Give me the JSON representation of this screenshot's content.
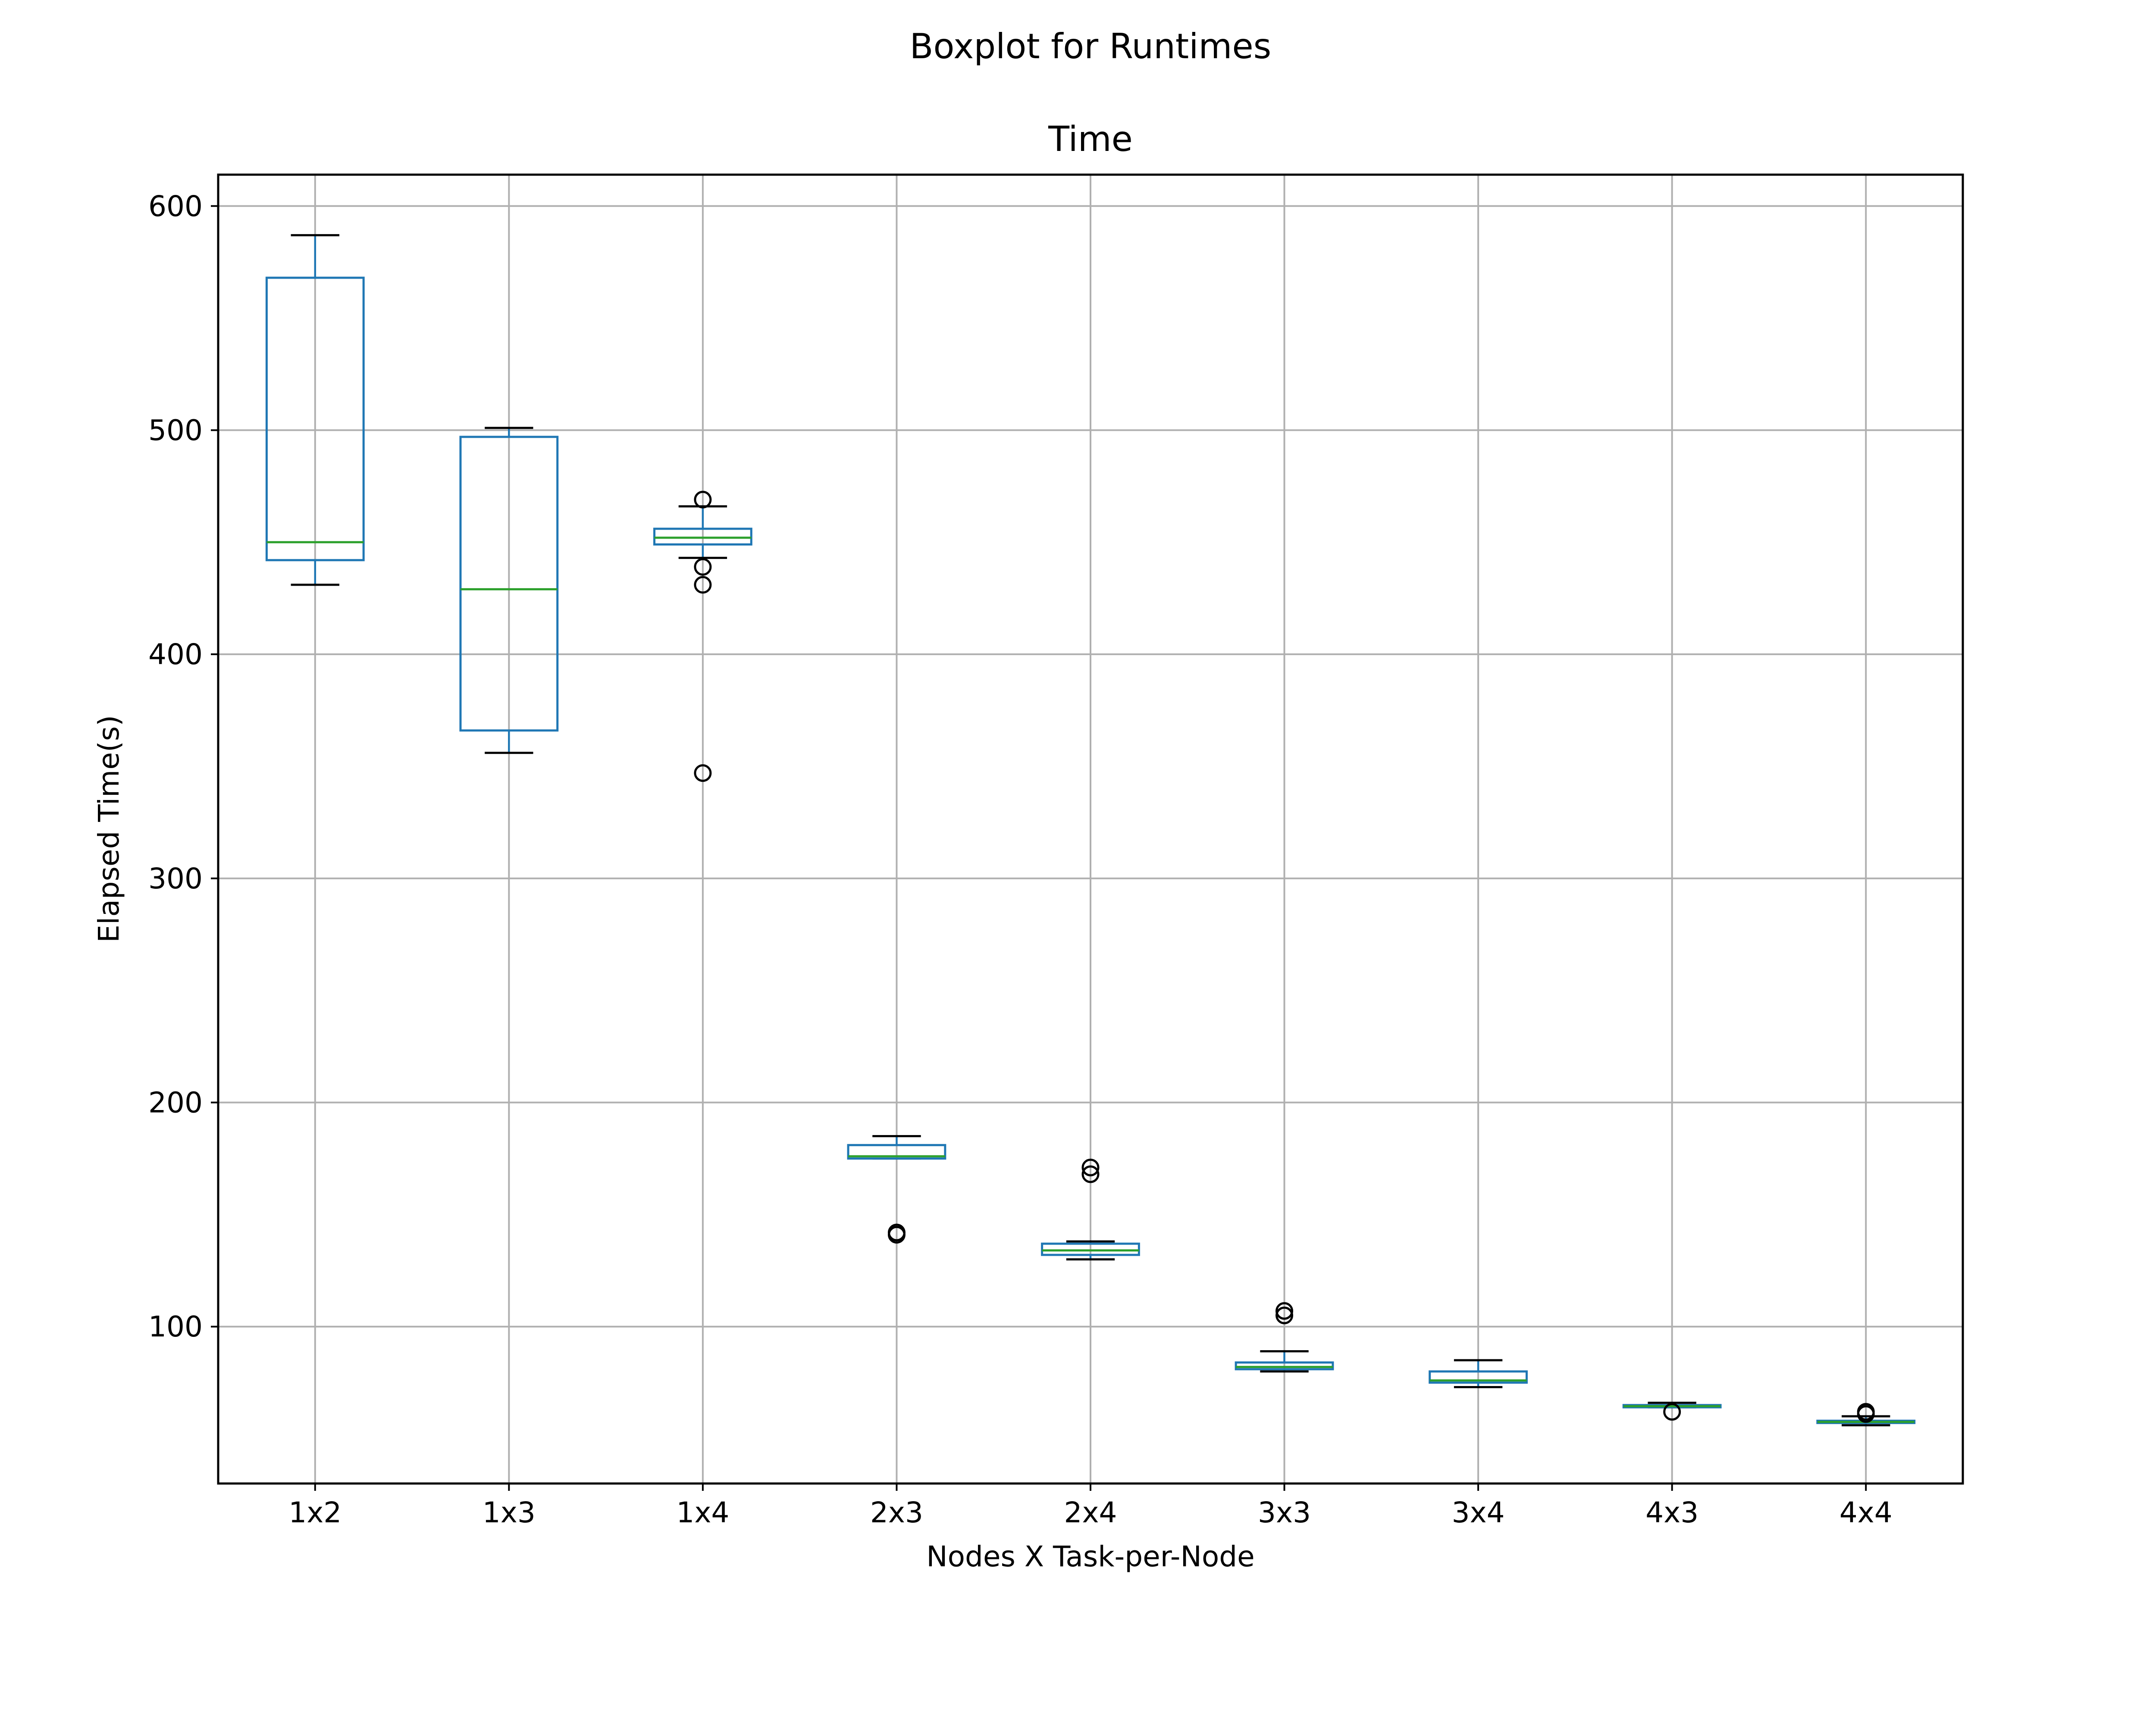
{
  "chart_data": {
    "type": "boxplot",
    "suptitle": "Boxplot for Runtimes",
    "title": "Time",
    "xlabel": "Nodes X Task-per-Node",
    "ylabel": "Elapsed Time(s)",
    "ylim": [
      30,
      614
    ],
    "yticks": [
      100,
      200,
      300,
      400,
      500,
      600
    ],
    "grid": true,
    "categories": [
      "1x2",
      "1x3",
      "1x4",
      "2x3",
      "2x4",
      "3x3",
      "3x4",
      "4x3",
      "4x4"
    ],
    "boxes": [
      {
        "label": "1x2",
        "whisker_low": 431,
        "q1": 442,
        "median": 450,
        "q3": 568,
        "whisker_high": 587,
        "outliers": []
      },
      {
        "label": "1x3",
        "whisker_low": 356,
        "q1": 366,
        "median": 429,
        "q3": 497,
        "whisker_high": 501,
        "outliers": []
      },
      {
        "label": "1x4",
        "whisker_low": 443,
        "q1": 449,
        "median": 452,
        "q3": 456,
        "whisker_high": 466,
        "outliers": [
          469,
          439,
          431,
          347
        ]
      },
      {
        "label": "2x3",
        "whisker_low": 175,
        "q1": 175,
        "median": 176,
        "q3": 181,
        "whisker_high": 185,
        "outliers": [
          142,
          141
        ]
      },
      {
        "label": "2x4",
        "whisker_low": 130,
        "q1": 132,
        "median": 134,
        "q3": 137,
        "whisker_high": 138,
        "outliers": [
          171,
          168
        ]
      },
      {
        "label": "3x3",
        "whisker_low": 80,
        "q1": 81,
        "median": 82,
        "q3": 84,
        "whisker_high": 89,
        "outliers": [
          107,
          105
        ]
      },
      {
        "label": "3x4",
        "whisker_low": 73,
        "q1": 75,
        "median": 76,
        "q3": 80,
        "whisker_high": 85,
        "outliers": []
      },
      {
        "label": "4x3",
        "whisker_low": 64,
        "q1": 64,
        "median": 64.5,
        "q3": 65,
        "whisker_high": 66,
        "outliers": [
          62
        ]
      },
      {
        "label": "4x4",
        "whisker_low": 56,
        "q1": 57,
        "median": 57.5,
        "q3": 58,
        "whisker_high": 60,
        "outliers": [
          62,
          61
        ]
      }
    ],
    "colors": {
      "box": "#1f77b4",
      "median": "#2ca02c",
      "whisker": "#000000",
      "grid": "#b0b0b0",
      "outlier": "#000000"
    }
  }
}
